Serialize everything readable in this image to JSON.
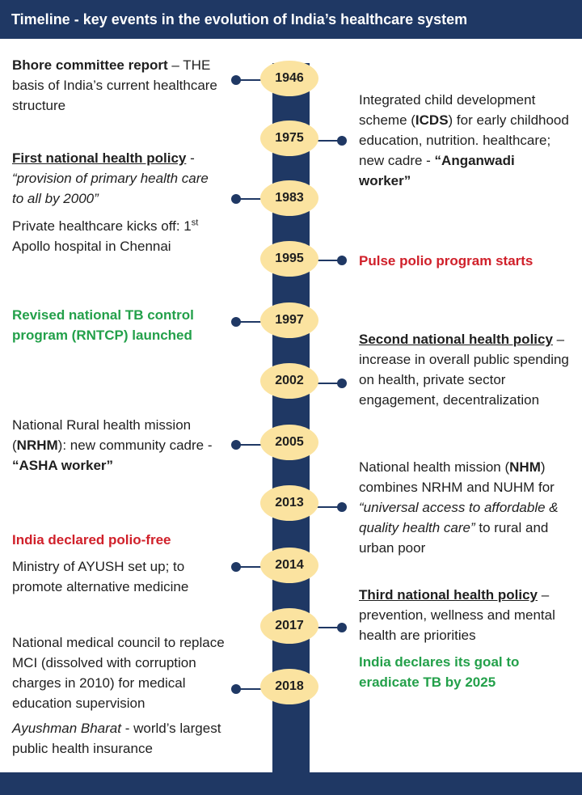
{
  "header": {
    "title": "Timeline - key events in the evolution of India’s healthcare system"
  },
  "years": [
    "1946",
    "1975",
    "1983",
    "1995",
    "1997",
    "2002",
    "2005",
    "2013",
    "2014",
    "2017",
    "2018"
  ],
  "events": {
    "e1946": {
      "title": "Bhore committee report",
      "rest": " – THE basis of India’s current healthcare structure"
    },
    "e1975": {
      "pre": "Integrated child development scheme (",
      "abbr": "ICDS",
      "mid": ") for early childhood education, nutrition. healthcare; new cadre - ",
      "quote": "“Anganwadi worker”"
    },
    "e1983a": {
      "title": "First national health policy",
      "dash": " - ",
      "quote": "“provision of primary health care to all by 2000”"
    },
    "e1983b": {
      "text": "Private healthcare kicks off: 1",
      "sup": "st",
      "text2": " Apollo hospital in Chennai"
    },
    "e1995": {
      "text": "Pulse polio program starts"
    },
    "e1997": {
      "text": "Revised national TB control program (RNTCP) launched"
    },
    "e2002": {
      "title": "Second national health policy",
      "rest": " – increase in overall public spending on health, private sector engagement, decentralization"
    },
    "e2005": {
      "pre": "National Rural health mission (",
      "abbr": "NRHM",
      "mid": "):  new community cadre -  ",
      "quote": "“ASHA worker”"
    },
    "e2013": {
      "pre": "National health mission (",
      "abbr": "NHM",
      "mid": ") combines NRHM and NUHM for ",
      "quote": "“universal access to affordable & quality health care”",
      "post": " to rural and urban poor"
    },
    "e2014a": {
      "text": "India declared polio-free"
    },
    "e2014b": {
      "text": "Ministry of AYUSH set up; to promote alternative medicine"
    },
    "e2017a": {
      "title": "Third national health policy",
      "rest": " – prevention, wellness and mental health are priorities"
    },
    "e2017b": {
      "text": "India declares its goal to eradicate TB by 2025"
    },
    "e2018a": {
      "text": "National medical council to replace MCI (dissolved with corruption charges in 2010) for medical education supervision"
    },
    "e2018b": {
      "title": "Ayushman Bharat",
      "rest": " - world’s largest public health insurance"
    }
  },
  "colors": {
    "navy": "#1f3864",
    "year_fill": "#fbe3a0",
    "red": "#d0202a",
    "green": "#23a04a"
  }
}
